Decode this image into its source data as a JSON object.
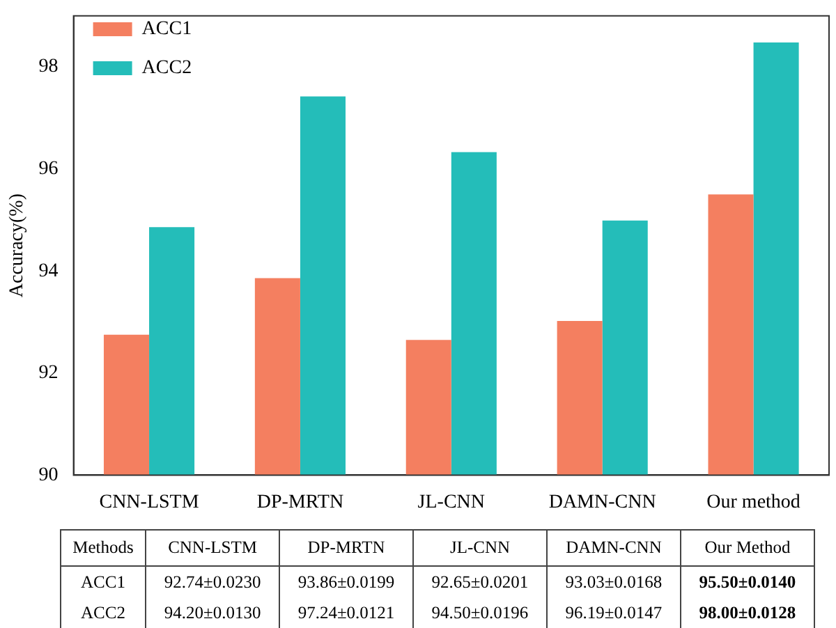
{
  "chart_data": {
    "type": "bar",
    "ylabel": "Accuracy(%)",
    "categories": [
      "CNN-LSTM",
      "DP-MRTN",
      "JL-CNN",
      "DAMN-CNN",
      "Our method"
    ],
    "series": [
      {
        "name": "ACC1",
        "color": "#f47f60",
        "values": [
          92.75,
          93.86,
          92.65,
          93.02,
          95.5
        ]
      },
      {
        "name": "ACC2",
        "color": "#24bdb9",
        "values": [
          94.86,
          97.42,
          96.33,
          94.99,
          98.48
        ]
      }
    ],
    "ylim": [
      90,
      99
    ],
    "yticks": [
      90,
      92,
      94,
      96,
      98
    ],
    "grid": false,
    "legend": "top left",
    "annotations": [
      "Methods",
      "CNN-LSTM",
      "DP-MRTN",
      "JL-CNN",
      "DAMN-CNN",
      "Our Method",
      "ACC1",
      "92.74±0.0230",
      "93.86±0.0199",
      "92.65±0.0201",
      "93.03±0.0168",
      "95.50±0.0140",
      "ACC2",
      "94.20±0.0130",
      "97.24±0.0121",
      "94.50±0.0196",
      "96.19±0.0147",
      "98.00±0.0128"
    ]
  }
}
